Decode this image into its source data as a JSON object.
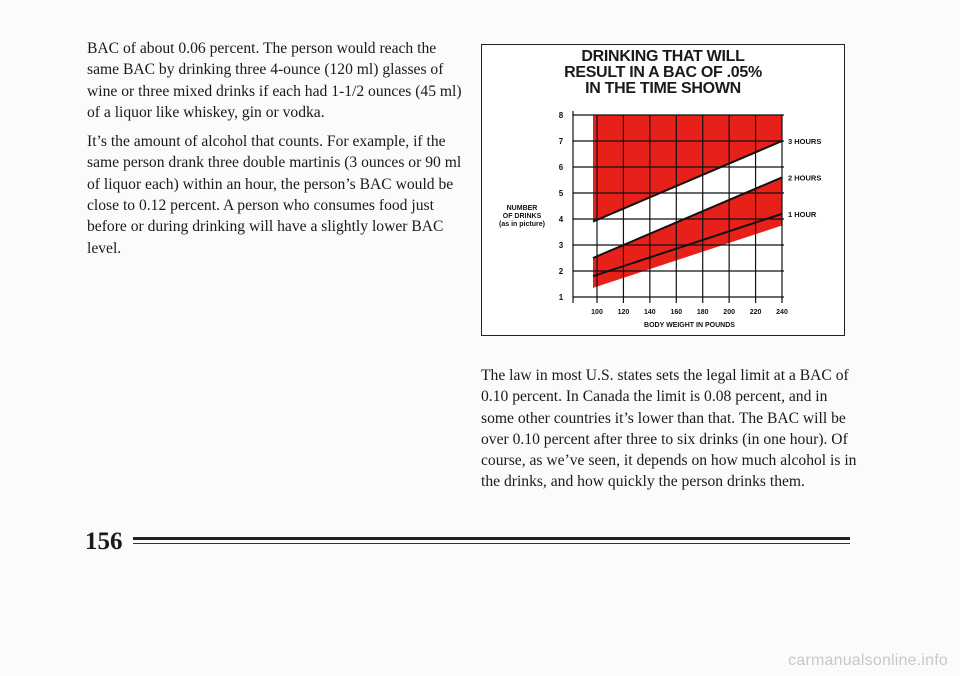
{
  "left_column": {
    "paragraph_1": "BAC of about 0.06 percent. The person would reach the same BAC by drinking three 4-ounce (120 ml) glasses of wine or three mixed drinks if each had 1-1/2 ounces (45 ml) of a liquor like whiskey, gin or vodka.",
    "paragraph_2": "It’s the amount of alcohol that counts. For example, if the same person drank three double martinis (3 ounces or 90 ml of liquor each) within an hour, the person’s BAC would be close to 0.12 percent. A person who consumes food just before or during drinking will have a slightly lower BAC level."
  },
  "right_column": {
    "paragraph_1": "The law in most U.S. states sets the legal limit at a BAC of 0.10 percent. In Canada the limit is 0.08 percent, and in some other countries it’s lower than that. The BAC will be over 0.10 percent after three to six drinks (in one hour). Of course, as we’ve seen, it depends on how much alcohol is in the drinks, and how quickly the person drinks them."
  },
  "chart_data": {
    "type": "line",
    "title_lines": [
      "DRINKING THAT WILL",
      "RESULT IN A BAC OF .05%",
      "IN THE TIME SHOWN"
    ],
    "xlabel": "BODY WEIGHT IN POUNDS",
    "ylabel_lines": [
      "NUMBER",
      "OF DRINKS",
      "(as in picture)"
    ],
    "x_ticks": [
      100,
      120,
      140,
      160,
      180,
      200,
      220,
      240
    ],
    "y_ticks": [
      1,
      2,
      3,
      4,
      5,
      6,
      7,
      8
    ],
    "xlim": [
      100,
      240
    ],
    "ylim": [
      1,
      8
    ],
    "series": [
      {
        "name": "1 HOUR",
        "x": [
          100,
          240
        ],
        "y": [
          1.8,
          4.2
        ]
      },
      {
        "name": "2 HOURS",
        "x": [
          100,
          240
        ],
        "y": [
          2.5,
          5.6
        ]
      },
      {
        "name": "3 HOURS",
        "x": [
          100,
          240
        ],
        "y": [
          3.9,
          7.0
        ]
      }
    ],
    "colors": {
      "fill": "#e8201a",
      "line": "#111111",
      "background": "#ffffff"
    }
  },
  "footer": {
    "page_number": "156",
    "watermark": "carmanualsonline.info"
  }
}
